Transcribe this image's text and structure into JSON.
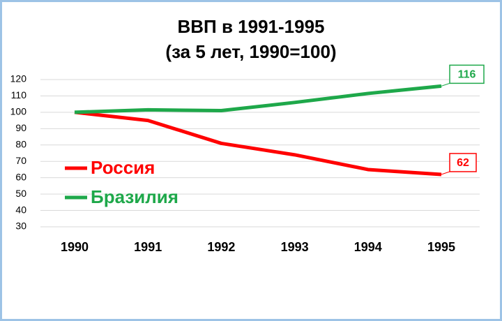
{
  "chart_data": {
    "type": "line",
    "title": [
      "ВВП в 1991-1995",
      "(за 5 лет, 1990=100)"
    ],
    "x": [
      1990,
      1991,
      1992,
      1993,
      1994,
      1995
    ],
    "series": [
      {
        "name": "Россия",
        "color": "#ff0000",
        "values": [
          100,
          95,
          81,
          74,
          65,
          62
        ],
        "value_labels": [
          null,
          null,
          null,
          null,
          null,
          "62"
        ]
      },
      {
        "name": "Бразилия",
        "color": "#1ea84a",
        "values": [
          100,
          101.5,
          101,
          106,
          111.5,
          116
        ],
        "value_labels": [
          null,
          null,
          null,
          null,
          null,
          "116"
        ]
      }
    ],
    "ylim": [
      30,
      120
    ],
    "yticks": [
      30,
      40,
      50,
      60,
      70,
      80,
      90,
      100,
      110,
      120
    ],
    "grid": true,
    "legend": "left"
  }
}
